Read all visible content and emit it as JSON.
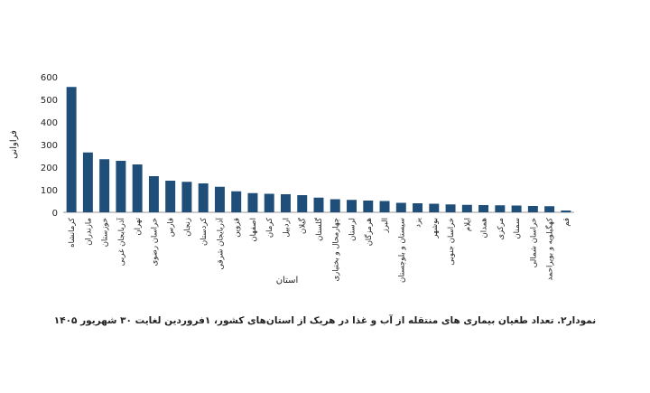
{
  "chart_data": {
    "type": "bar",
    "caption": "نمودار۲. تعداد طغیان بیماری های منتقله از آب و غذا در هریک از استان‌های کشور، ۱فروردین لغایت ۳۰ شهریور ۱۴۰۵",
    "x_label": "استان",
    "y_label": "فراوانی",
    "categories": [
      "کرمانشاه",
      "مازندران",
      "خوزستان",
      "آذربایجان غربی",
      "تهران",
      "خراسان رضوی",
      "فارس",
      "زنجان",
      "کردستان",
      "آذربایجان شرقی",
      "قزوین",
      "اصفهان",
      "کرمان",
      "اردبیل",
      "گیلان",
      "گلستان",
      "چهارمحال و بختیاری",
      "لرستان",
      "هرمزگان",
      "البرز",
      "سیستان و بلوچستان",
      "یزد",
      "بوشهر",
      "خراسان جنوبی",
      "ایلام",
      "همدان",
      "مرکزی",
      "سمنان",
      "خراسان شمالی",
      "کهگیلویه و بویراحمد",
      "قم"
    ],
    "values": [
      555,
      265,
      235,
      228,
      212,
      160,
      140,
      135,
      128,
      113,
      93,
      85,
      82,
      80,
      76,
      65,
      58,
      55,
      52,
      50,
      42,
      40,
      38,
      35,
      33,
      32,
      31,
      30,
      28,
      27,
      8
    ],
    "color": "#1f4e79",
    "ylim": [
      0,
      600
    ],
    "yticks": [
      0,
      100,
      200,
      300,
      400,
      500,
      600
    ],
    "grid": false
  }
}
